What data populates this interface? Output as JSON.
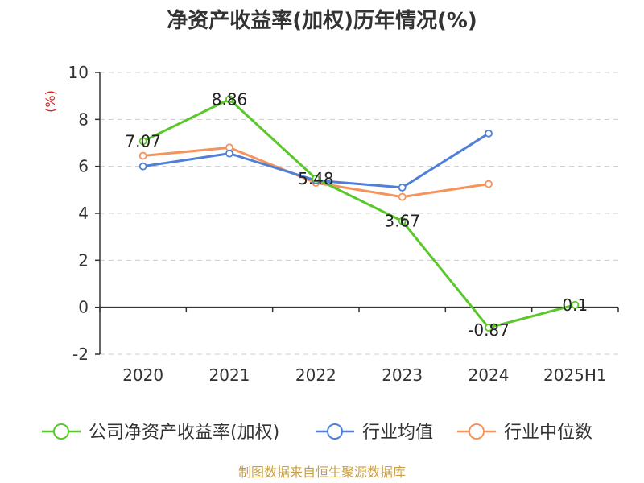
{
  "chart_data": {
    "type": "line",
    "title": "净资产收益率(加权)历年情况(%)",
    "y_unit": "(%)",
    "categories": [
      "2020",
      "2021",
      "2022",
      "2023",
      "2024",
      "2025H1"
    ],
    "y_ticks": [
      "10",
      "8",
      "6",
      "4",
      "2",
      "0",
      "-2"
    ],
    "ylim": [
      -2,
      10
    ],
    "grid": true,
    "legend_position": "bottom",
    "series": [
      {
        "name": "公司净资产收益率(加权)",
        "color": "#5ac72a",
        "values": [
          7.07,
          8.86,
          5.48,
          3.67,
          -0.87,
          0.1
        ],
        "labels": [
          "7.07",
          "8.86",
          "5.48",
          "3.67",
          "-0.87",
          "0.1"
        ]
      },
      {
        "name": "行业均值",
        "color": "#4f7fd6",
        "values": [
          6.0,
          6.55,
          5.4,
          5.1,
          7.4,
          null
        ]
      },
      {
        "name": "行业中位数",
        "color": "#f5935a",
        "values": [
          6.45,
          6.8,
          5.3,
          4.7,
          5.25,
          null
        ]
      }
    ]
  },
  "source": "制图数据来自恒生聚源数据库"
}
